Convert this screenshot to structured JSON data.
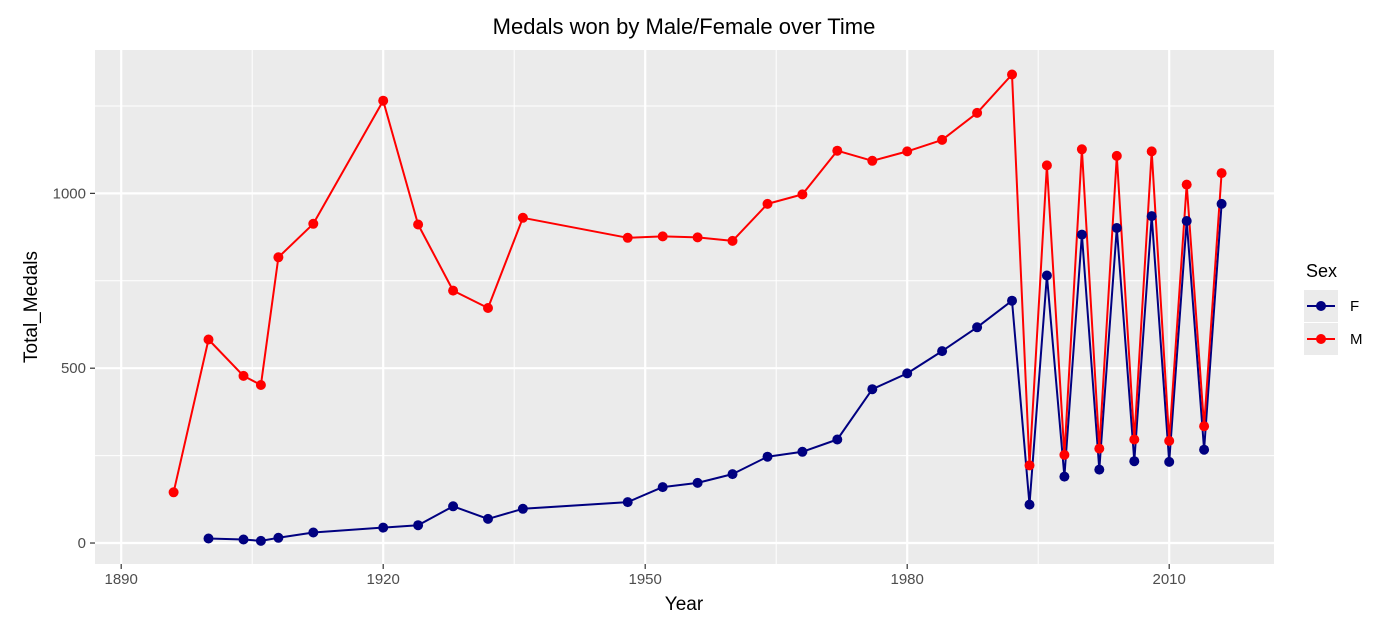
{
  "chart_data": {
    "type": "line",
    "title": "Medals won by Male/Female over Time",
    "xlabel": "Year",
    "ylabel": "Total_Medals",
    "xlim": [
      1887,
      2022
    ],
    "ylim": [
      -60,
      1410
    ],
    "x_ticks": [
      1890,
      1920,
      1950,
      1980,
      2010
    ],
    "x_tick_labels": [
      "1890",
      "1920",
      "1950",
      "1980",
      "2010"
    ],
    "y_ticks": [
      0,
      500,
      1000
    ],
    "y_tick_labels": [
      "0",
      "500",
      "1000"
    ],
    "grid": true,
    "legend": {
      "title": "Sex",
      "position": "right"
    },
    "series": [
      {
        "name": "F",
        "color": "#000080",
        "points": [
          [
            1900,
            13
          ],
          [
            1904,
            10
          ],
          [
            1906,
            6
          ],
          [
            1908,
            15
          ],
          [
            1912,
            30
          ],
          [
            1920,
            44
          ],
          [
            1924,
            51
          ],
          [
            1928,
            105
          ],
          [
            1932,
            69
          ],
          [
            1936,
            98
          ],
          [
            1948,
            117
          ],
          [
            1952,
            160
          ],
          [
            1956,
            172
          ],
          [
            1960,
            197
          ],
          [
            1964,
            247
          ],
          [
            1968,
            261
          ],
          [
            1972,
            296
          ],
          [
            1976,
            440
          ],
          [
            1980,
            485
          ],
          [
            1984,
            549
          ],
          [
            1988,
            617
          ],
          [
            1992,
            693
          ],
          [
            1994,
            110
          ],
          [
            1996,
            765
          ],
          [
            1998,
            190
          ],
          [
            2000,
            882
          ],
          [
            2002,
            210
          ],
          [
            2004,
            901
          ],
          [
            2006,
            234
          ],
          [
            2008,
            935
          ],
          [
            2010,
            232
          ],
          [
            2012,
            921
          ],
          [
            2014,
            267
          ],
          [
            2016,
            970
          ]
        ]
      },
      {
        "name": "M",
        "color": "#ff0000",
        "points": [
          [
            1896,
            145
          ],
          [
            1900,
            582
          ],
          [
            1904,
            478
          ],
          [
            1906,
            452
          ],
          [
            1908,
            817
          ],
          [
            1912,
            913
          ],
          [
            1920,
            1265
          ],
          [
            1924,
            911
          ],
          [
            1928,
            722
          ],
          [
            1932,
            672
          ],
          [
            1936,
            930
          ],
          [
            1948,
            873
          ],
          [
            1952,
            877
          ],
          [
            1956,
            874
          ],
          [
            1960,
            864
          ],
          [
            1964,
            970
          ],
          [
            1968,
            997
          ],
          [
            1972,
            1122
          ],
          [
            1976,
            1093
          ],
          [
            1980,
            1120
          ],
          [
            1984,
            1153
          ],
          [
            1988,
            1230
          ],
          [
            1992,
            1340
          ],
          [
            1994,
            222
          ],
          [
            1996,
            1080
          ],
          [
            1998,
            252
          ],
          [
            2000,
            1126
          ],
          [
            2002,
            270
          ],
          [
            2004,
            1107
          ],
          [
            2006,
            296
          ],
          [
            2008,
            1120
          ],
          [
            2010,
            292
          ],
          [
            2012,
            1025
          ],
          [
            2014,
            334
          ],
          [
            2016,
            1058
          ]
        ]
      }
    ]
  }
}
